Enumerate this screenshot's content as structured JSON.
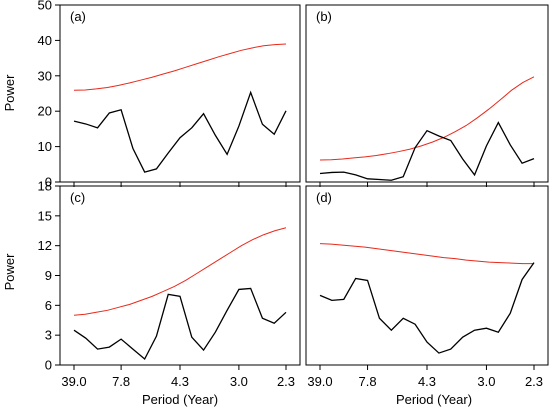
{
  "chart_data": {
    "type": "line",
    "xlabel": "Period (Year)",
    "ylabel": "Power",
    "x_tick_labels": [
      "39.0",
      "7.8",
      "4.3",
      "3.0",
      "2.3"
    ],
    "colors": {
      "observed": "#000000",
      "significance": "#e8291c"
    },
    "panels": [
      {
        "label": "(a)",
        "ylim": [
          0,
          50
        ],
        "yticks": [
          "0",
          "10",
          "20",
          "30",
          "40",
          "50"
        ],
        "observed": [
          17.2,
          16.4,
          15.3,
          19.5,
          20.4,
          9.5,
          2.8,
          3.7,
          8.2,
          12.5,
          15.3,
          19.3,
          13.2,
          7.8,
          15.8,
          25.3,
          16.3,
          13.5,
          20.1
        ],
        "significance": [
          25.9,
          26.0,
          26.3,
          26.7,
          27.3,
          28.0,
          28.8,
          29.6,
          30.5,
          31.4,
          32.4,
          33.4,
          34.4,
          35.4,
          36.3,
          37.2,
          37.9,
          38.5,
          38.8,
          39.0
        ]
      },
      {
        "label": "(b)",
        "ylim": [
          0,
          50
        ],
        "yticks": [],
        "observed": [
          2.4,
          2.7,
          2.8,
          2.0,
          0.9,
          0.7,
          0.5,
          1.5,
          9.7,
          14.5,
          13.0,
          11.7,
          6.5,
          2.0,
          10.2,
          16.8,
          10.5,
          5.3,
          6.6
        ],
        "significance": [
          6.2,
          6.3,
          6.5,
          6.8,
          7.1,
          7.5,
          8.0,
          8.6,
          9.3,
          10.2,
          11.3,
          12.6,
          14.2,
          16.0,
          18.2,
          20.6,
          23.2,
          25.9,
          28.1,
          29.7
        ]
      },
      {
        "label": "(c)",
        "ylim": [
          0,
          18
        ],
        "yticks": [
          "0",
          "3",
          "6",
          "9",
          "12",
          "15",
          "18"
        ],
        "observed": [
          3.5,
          2.7,
          1.6,
          1.8,
          2.6,
          1.6,
          0.6,
          2.9,
          7.1,
          6.9,
          2.8,
          1.5,
          3.3,
          5.5,
          7.6,
          7.7,
          4.7,
          4.2,
          5.3
        ],
        "significance": [
          5.0,
          5.1,
          5.3,
          5.5,
          5.8,
          6.1,
          6.5,
          6.9,
          7.4,
          7.9,
          8.5,
          9.2,
          9.9,
          10.6,
          11.3,
          12.0,
          12.6,
          13.1,
          13.5,
          13.8
        ]
      },
      {
        "label": "(d)",
        "ylim": [
          0,
          18
        ],
        "yticks": [],
        "observed": [
          7.0,
          6.5,
          6.6,
          8.7,
          8.5,
          4.7,
          3.5,
          4.7,
          4.1,
          2.3,
          1.2,
          1.6,
          2.8,
          3.5,
          3.7,
          3.3,
          5.2,
          8.6,
          10.3
        ],
        "significance": [
          12.2,
          12.15,
          12.05,
          11.95,
          11.85,
          11.7,
          11.55,
          11.4,
          11.25,
          11.1,
          10.95,
          10.8,
          10.7,
          10.55,
          10.45,
          10.35,
          10.3,
          10.25,
          10.2,
          10.2
        ]
      }
    ]
  }
}
